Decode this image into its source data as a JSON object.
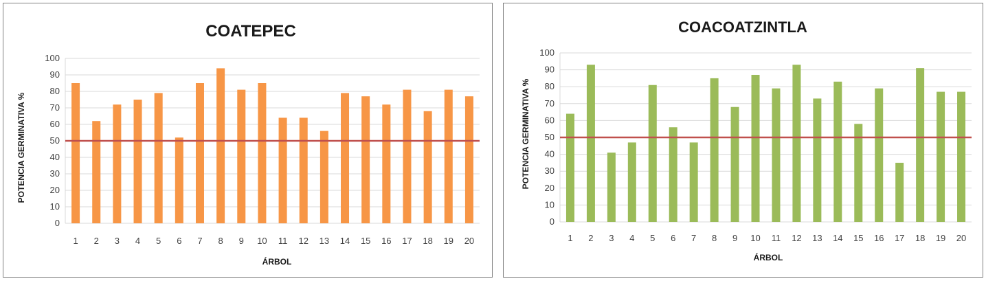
{
  "colors": {
    "reference_line": "#c0504d",
    "grid": "#d9d9d9"
  },
  "chart_data": [
    {
      "type": "bar",
      "title": "COATEPEC",
      "xlabel": "ÁRBOL",
      "ylabel": "POTENCIA GERMINATIVA %",
      "categories": [
        "1",
        "2",
        "3",
        "4",
        "5",
        "6",
        "7",
        "8",
        "9",
        "10",
        "11",
        "12",
        "13",
        "14",
        "15",
        "16",
        "17",
        "18",
        "19",
        "20"
      ],
      "values": [
        85,
        62,
        72,
        75,
        79,
        52,
        85,
        94,
        81,
        85,
        64,
        64,
        56,
        79,
        77,
        72,
        81,
        68,
        81,
        77
      ],
      "ylim": [
        0,
        100
      ],
      "yticks": [
        "0",
        "10",
        "20",
        "30",
        "40",
        "50",
        "60",
        "70",
        "80",
        "90",
        "100"
      ],
      "grid": true,
      "reference_line": 50,
      "bar_color": "#f79646"
    },
    {
      "type": "bar",
      "title": "COACOATZINTLA",
      "xlabel": "ÁRBOL",
      "ylabel": "POTENCIA GERMINATIVA %",
      "categories": [
        "1",
        "2",
        "3",
        "4",
        "5",
        "6",
        "7",
        "8",
        "9",
        "10",
        "11",
        "12",
        "13",
        "14",
        "15",
        "16",
        "17",
        "18",
        "19",
        "20"
      ],
      "values": [
        64,
        93,
        41,
        47,
        81,
        56,
        47,
        85,
        68,
        87,
        79,
        93,
        73,
        83,
        58,
        79,
        35,
        91,
        77,
        77
      ],
      "ylim": [
        0,
        100
      ],
      "yticks": [
        "0",
        "10",
        "20",
        "30",
        "40",
        "50",
        "60",
        "70",
        "80",
        "90",
        "100"
      ],
      "grid": true,
      "reference_line": 50,
      "bar_color": "#9bbb59"
    }
  ]
}
